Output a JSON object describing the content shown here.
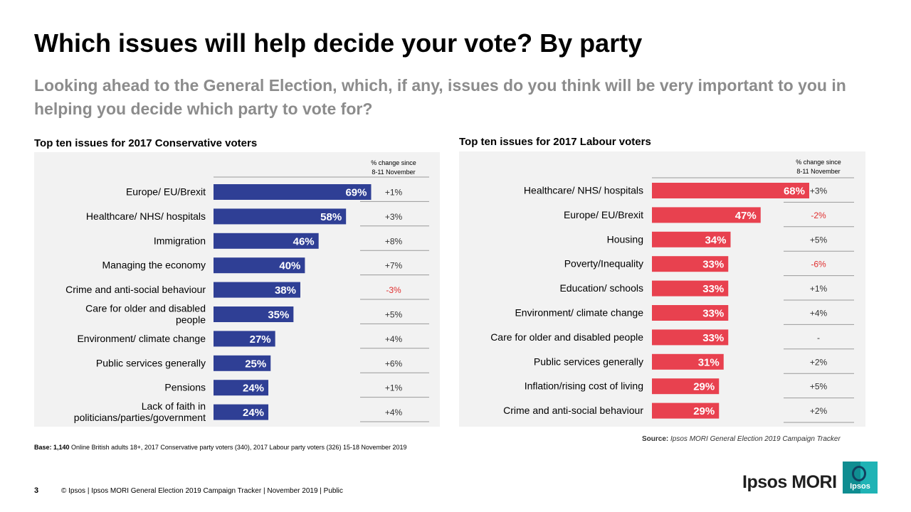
{
  "title": "Which issues will help decide your vote? By party",
  "subtitle": "Looking ahead to the General Election, which, if any, issues do you think will be very important to you in helping you decide which party to vote for?",
  "colors": {
    "conservative": "#2f3f95",
    "labour": "#e8414f",
    "change_positive": "#333333",
    "change_negative": "#e03030",
    "panel_bg": "#f2f2f2"
  },
  "chart_data": [
    {
      "type": "bar",
      "orientation": "horizontal",
      "title": "Top ten issues for 2017 Conservative voters",
      "change_header": [
        "% change since",
        "8-11 November"
      ],
      "categories": [
        [
          "Europe/ EU/Brexit"
        ],
        [
          "Healthcare/ NHS/ hospitals"
        ],
        [
          "Immigration"
        ],
        [
          "Managing the economy"
        ],
        [
          "Crime and anti-social behaviour"
        ],
        [
          "Care for older and disabled",
          "people"
        ],
        [
          "Environment/ climate change"
        ],
        [
          "Public services generally"
        ],
        [
          "Pensions"
        ],
        [
          "Lack of faith in",
          "politicians/parties/government"
        ]
      ],
      "values": [
        69,
        58,
        46,
        40,
        38,
        35,
        27,
        25,
        24,
        24
      ],
      "value_labels": [
        "69%",
        "58%",
        "46%",
        "40%",
        "38%",
        "35%",
        "27%",
        "25%",
        "24%",
        "24%"
      ],
      "changes": [
        "+1%",
        "+3%",
        "+8%",
        "+7%",
        "-3%",
        "+5%",
        "+4%",
        "+6%",
        "+1%",
        "+4%"
      ],
      "xlim": [
        0,
        100
      ],
      "unit": "%"
    },
    {
      "type": "bar",
      "orientation": "horizontal",
      "title": "Top ten issues for 2017 Labour voters",
      "change_header": [
        "% change since",
        "8-11 November"
      ],
      "categories": [
        [
          "Healthcare/ NHS/ hospitals"
        ],
        [
          "Europe/ EU/Brexit"
        ],
        [
          "Housing"
        ],
        [
          "Poverty/Inequality"
        ],
        [
          "Education/ schools"
        ],
        [
          "Environment/ climate change"
        ],
        [
          "Care for older and disabled people"
        ],
        [
          "Public services generally"
        ],
        [
          "Inflation/rising cost of living"
        ],
        [
          "Crime and anti-social behaviour"
        ]
      ],
      "values": [
        68,
        47,
        34,
        33,
        33,
        33,
        33,
        31,
        29,
        29
      ],
      "value_labels": [
        "68%",
        "47%",
        "34%",
        "33%",
        "33%",
        "33%",
        "33%",
        "31%",
        "29%",
        "29%"
      ],
      "changes": [
        "+3%",
        "-2%",
        "+5%",
        "-6%",
        "+1%",
        "+4%",
        "-",
        "+2%",
        "+5%",
        "+2%"
      ],
      "xlim": [
        0,
        100
      ],
      "unit": "%"
    }
  ],
  "base_note": {
    "label": "Base: ",
    "count": "1,140",
    "text": " Online British adults 18+, 2017 Conservative party voters (340), 2017 Labour party voters (326)  15-18 November 2019"
  },
  "source": {
    "label": "Source:",
    "text": " Ipsos MORI General Election 2019 Campaign Tracker"
  },
  "footer": {
    "page_number": "3",
    "text": "© Ipsos | Ipsos MORI  General Election 2019 Campaign Tracker | November 2019 | Public",
    "brand": "Ipsos MORI",
    "logo_text": "Ipsos"
  }
}
